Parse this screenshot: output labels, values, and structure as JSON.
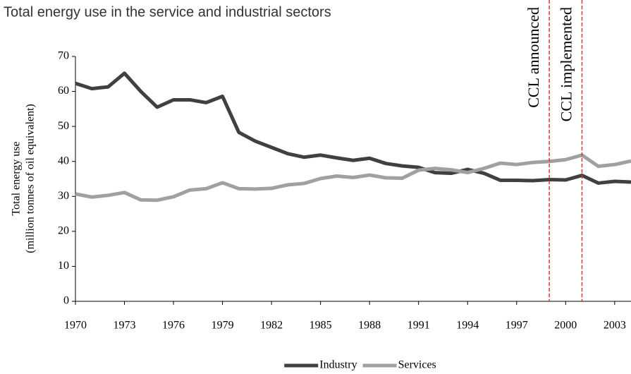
{
  "chart_data": {
    "type": "line",
    "title": "Total energy use in the service and industrial sectors",
    "y_label": [
      "Total energy use",
      "(million tonnes of oil equivalent)"
    ],
    "x": [
      1970,
      1971,
      1972,
      1973,
      1974,
      1975,
      1976,
      1977,
      1978,
      1979,
      1980,
      1981,
      1982,
      1983,
      1984,
      1985,
      1986,
      1987,
      1988,
      1989,
      1990,
      1991,
      1992,
      1993,
      1994,
      1995,
      1996,
      1997,
      1998,
      1999,
      2000,
      2001,
      2002,
      2003,
      2004
    ],
    "series": [
      {
        "name": "Industry",
        "color": "#404040",
        "values": [
          62.3,
          60.8,
          61.3,
          65.2,
          60.0,
          55.5,
          57.6,
          57.6,
          56.8,
          58.6,
          48.3,
          45.8,
          44.0,
          42.2,
          41.2,
          41.8,
          41.0,
          40.3,
          40.9,
          39.4,
          38.7,
          38.3,
          36.8,
          36.6,
          37.7,
          36.6,
          34.6,
          34.6,
          34.5,
          34.8,
          34.7,
          36.0,
          33.8,
          34.3,
          34.1
        ]
      },
      {
        "name": "Services",
        "color": "#a0a0a0",
        "values": [
          30.7,
          29.8,
          30.3,
          31.1,
          29.0,
          28.9,
          29.9,
          31.8,
          32.2,
          33.9,
          32.2,
          32.1,
          32.3,
          33.3,
          33.7,
          35.1,
          35.8,
          35.4,
          36.1,
          35.3,
          35.2,
          37.5,
          38.0,
          37.6,
          36.8,
          38.0,
          39.5,
          39.1,
          39.7,
          40.0,
          40.5,
          41.8,
          38.6,
          39.1,
          40.1
        ]
      }
    ],
    "annotations": [
      {
        "x": 1999,
        "label": "CCL announced",
        "color": "#e03030"
      },
      {
        "x": 2001,
        "label": "CCL implemented",
        "color": "#e03030"
      }
    ],
    "xlim": [
      1970,
      2004
    ],
    "xticks": [
      1970,
      1973,
      1976,
      1979,
      1982,
      1985,
      1988,
      1991,
      1994,
      1997,
      2000,
      2003
    ],
    "ylim": [
      0,
      70
    ],
    "yticks": [
      0,
      10,
      20,
      30,
      40,
      50,
      60,
      70
    ],
    "legend": "bottom"
  }
}
